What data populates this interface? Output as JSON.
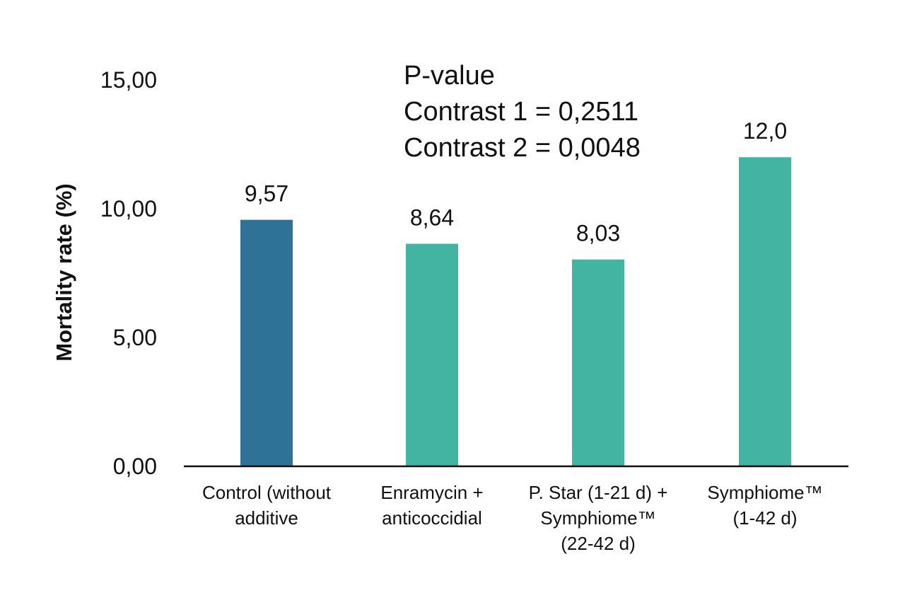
{
  "chart_data": {
    "type": "bar",
    "categories": [
      [
        "Control (without",
        "additive"
      ],
      [
        "Enramycin +",
        "anticoccidial"
      ],
      [
        "P. Star (1-21 d) +",
        "Symphiome™",
        "(22-42 d)"
      ],
      [
        "Symphiome™",
        "(1-42 d)"
      ]
    ],
    "values": [
      9.57,
      8.64,
      8.03,
      12.0
    ],
    "data_labels": [
      "9,57",
      "8,64",
      "8,03",
      "12,0"
    ],
    "colors": [
      "#2E7298",
      "#42B4A1",
      "#42B4A1",
      "#42B4A1"
    ],
    "ylabel": "Mortality rate (%)",
    "yticks": [
      0,
      5,
      10,
      15
    ],
    "ytick_labels": [
      "0,00",
      "5,00",
      "10,00",
      "15,00"
    ],
    "ylim": [
      0,
      15
    ],
    "grid": false,
    "annotation": [
      "P-value",
      "Contrast 1 = 0,2511",
      "Contrast 2 = 0,0048"
    ]
  }
}
